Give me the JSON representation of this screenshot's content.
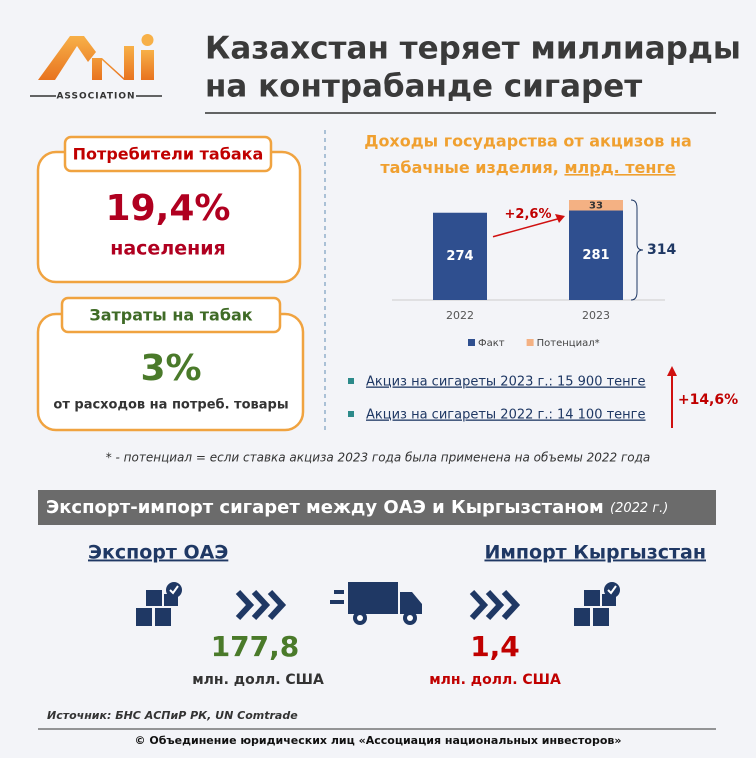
{
  "header": {
    "logo_text": "ASSOCIATION",
    "title_lines": [
      "Казахстан теряет миллиарды",
      "на контрабанде сигарет"
    ]
  },
  "cards": [
    {
      "label": "Потребители табака",
      "value": "19,4%",
      "caption": "населения"
    },
    {
      "label": "Затраты на табак",
      "value": "3%",
      "caption": "от расходов на потреб. товары"
    }
  ],
  "chart_data": {
    "type": "bar",
    "stacked": true,
    "title_lines": [
      "Доходы государства от акцизов на",
      "табачные изделия,"
    ],
    "title_unit": "млрд. тенге",
    "categories": [
      "2022",
      "2023"
    ],
    "series": [
      {
        "name": "Факт",
        "color": "#2f4f8f",
        "values": [
          274,
          281
        ]
      },
      {
        "name": "Потенциал*",
        "color": "#f4b183",
        "values": [
          null,
          33
        ]
      }
    ],
    "total": 314,
    "growth_label": "+2,6%"
  },
  "bullets": [
    "Акциз на сигареты 2023 г.: 15 900 тенге",
    "Акциз на сигареты 2022 г.: 14 100 тенге"
  ],
  "bullets_change": "+14,6%",
  "note": "* - потенциал = если ставка акциза 2023 года была применена на объемы 2022 года",
  "trade": {
    "title": "Экспорт-импорт сигарет между ОАЭ и Кыргызстаном",
    "title_year": "(2022 г.)",
    "export": {
      "label": "Экспорт ОАЭ",
      "value": "177,8",
      "unit": "млн. долл. США"
    },
    "import": {
      "label": "Импорт Кыргызстан",
      "value": "1,4",
      "unit": "млн. долл. США"
    }
  },
  "source": "Источник: БНС АСПиР РК, UN Comtrade",
  "footer": "© Объединение юридических лиц «Ассоциация национальных инвесторов»"
}
